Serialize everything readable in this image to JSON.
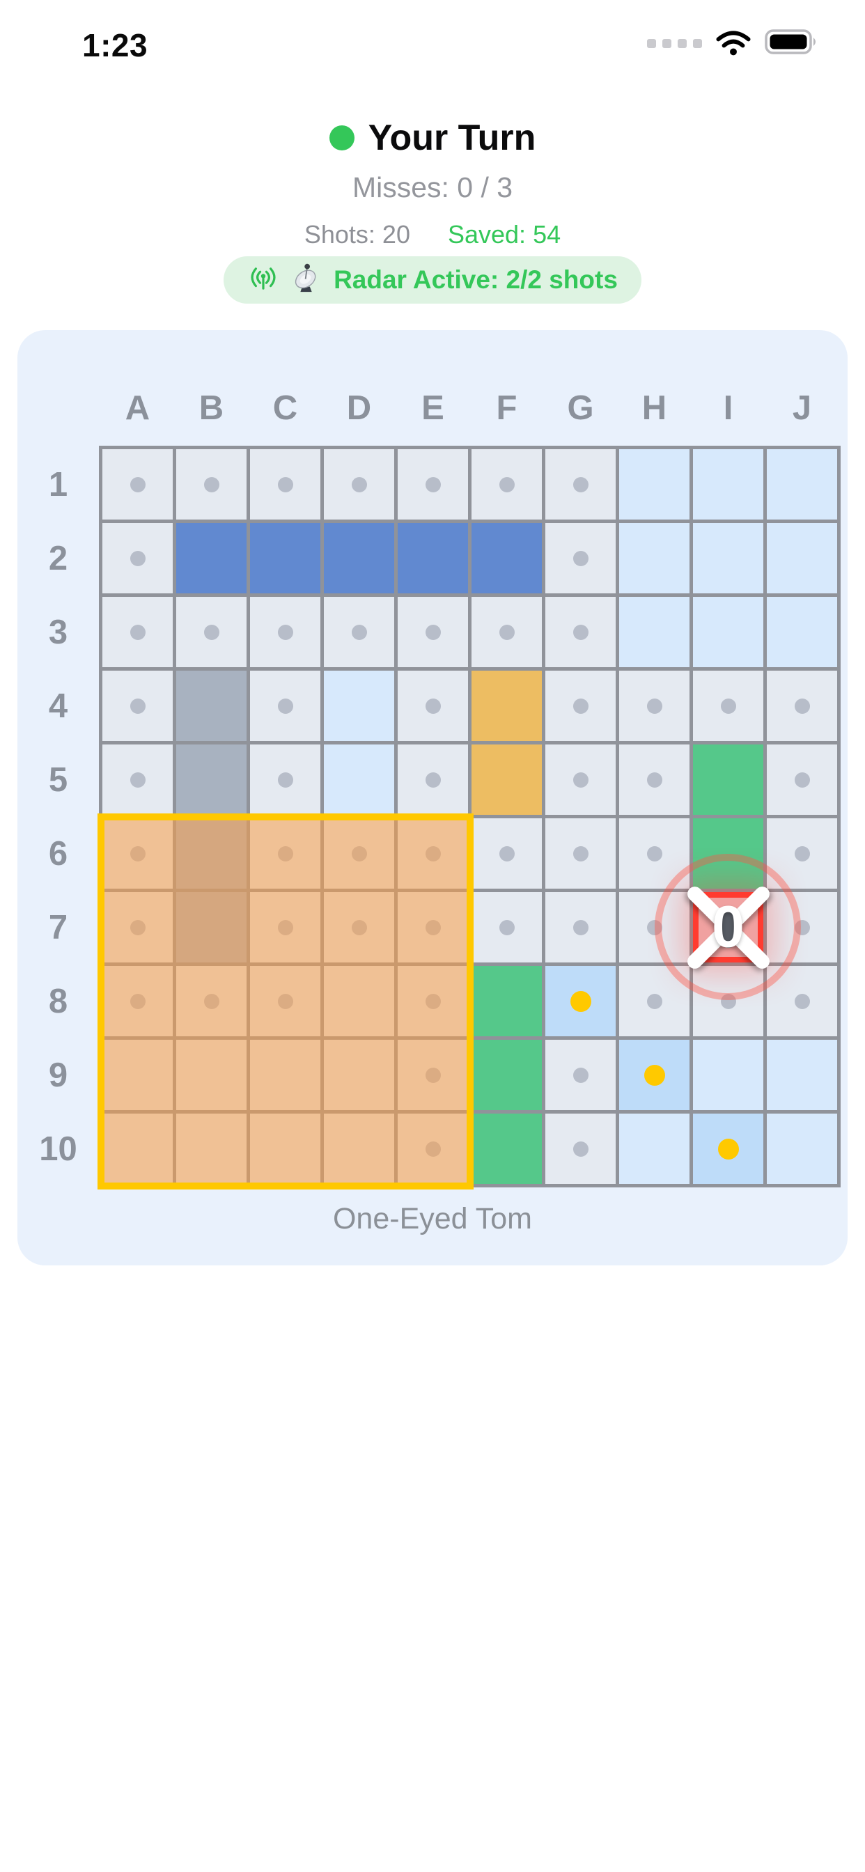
{
  "status_bar": {
    "time": "1:23",
    "cellular_icon": "cellular-signal-dots",
    "wifi_icon": "wifi",
    "battery_icon": "battery-full"
  },
  "header": {
    "turn_indicator": {
      "label": "Your Turn"
    },
    "misses": "Misses: 0 / 3",
    "shots": "Shots: 20",
    "saved": "Saved: 54",
    "radar_badge": {
      "label": "Radar Active: 2/2 shots"
    }
  },
  "board": {
    "columns": [
      "A",
      "B",
      "C",
      "D",
      "E",
      "F",
      "G",
      "H",
      "I",
      "J"
    ],
    "rows": [
      "1",
      "2",
      "3",
      "4",
      "5",
      "6",
      "7",
      "8",
      "9",
      "10"
    ],
    "grid": [
      [
        "g",
        "g",
        "g",
        "g",
        "g",
        "g",
        "g",
        "b",
        "b",
        "b"
      ],
      [
        "g",
        "S",
        "S",
        "S",
        "S",
        "S",
        "g",
        "b",
        "b",
        "b"
      ],
      [
        "g",
        "g",
        "g",
        "g",
        "g",
        "g",
        "g",
        "b",
        "b",
        "b"
      ],
      [
        "g",
        "s",
        "g",
        "b",
        "g",
        "o",
        "g",
        "g",
        "g",
        "g"
      ],
      [
        "g",
        "s",
        "g",
        "b",
        "g",
        "o",
        "g",
        "g",
        "n",
        "g"
      ],
      [
        "g",
        "s",
        "g",
        "g",
        "g",
        "g",
        "g",
        "g",
        "n",
        "g"
      ],
      [
        "g",
        "s",
        "g",
        "g",
        "g",
        "g",
        "g",
        "g",
        "e",
        "g"
      ],
      [
        "g",
        "g",
        "g",
        "e",
        "g",
        "n",
        "y",
        "g",
        "g",
        "g"
      ],
      [
        "e",
        "e",
        "e",
        "e",
        "g",
        "n",
        "g",
        "y",
        "b",
        "b"
      ],
      [
        "e",
        "e",
        "e",
        "e",
        "g",
        "n",
        "g",
        "b",
        "y",
        "b"
      ]
    ],
    "legend": {
      "g": "gray cell with gray dot",
      "e": "gray cell, no dot",
      "b": "light blue cell",
      "S": "blue ship cell",
      "s": "gray ship cell",
      "o": "gold cell",
      "n": "green cell",
      "y": "deeper blue cell with yellow dot"
    },
    "radar_scan_region": "A6:E10",
    "target": {
      "cell": "I7",
      "value": "0"
    },
    "opponent_name": "One-Eyed Tom"
  },
  "colors": {
    "green": "#34c759",
    "pill": "#def3e2",
    "panel": "#e9f1fc",
    "line": "#90939a",
    "cellgray": "#e5eaf1",
    "cellblue": "#d7e9fc",
    "celldeep": "#bedcf9",
    "dot": "#b7bdc9",
    "yellow": "#ffc900",
    "shipblue": "#6189d0",
    "shipgray": "#a8b2c0",
    "shipgold": "#edbd62",
    "shipgreen": "#55c88a",
    "radarborder": "#ffc800",
    "radarfill": "rgba(250,158,72,0.55)",
    "red": "#ff3b30"
  }
}
